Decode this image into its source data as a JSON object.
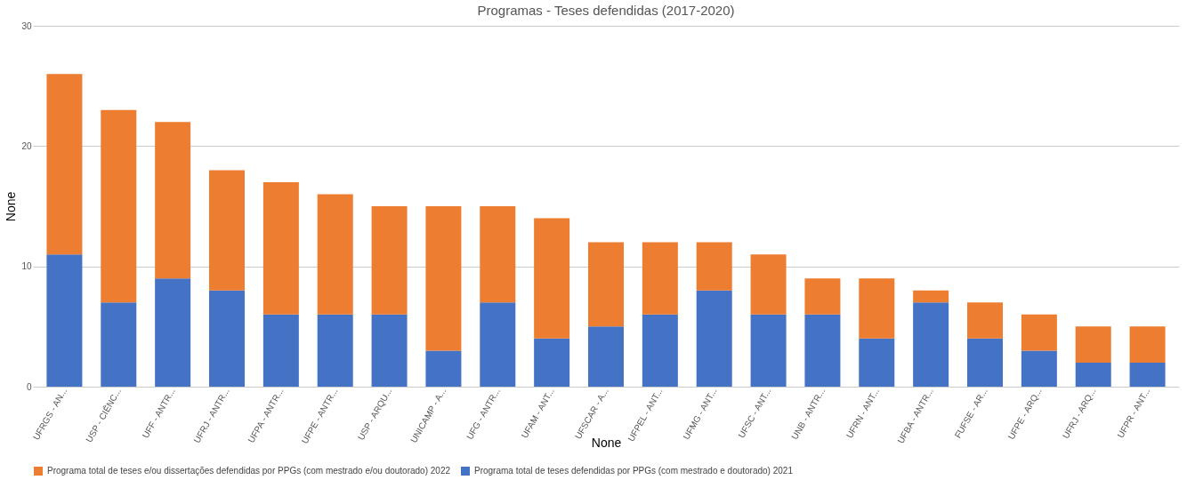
{
  "chart_data": {
    "type": "bar",
    "title": "Programas - Teses defendidas (2017-2020)",
    "xlabel": "None",
    "ylabel": "None",
    "categories": [
      "UFRGS - AN...",
      "USP - CIÊNC...",
      "UFF - ANTR...",
      "UFRJ - ANTR...",
      "UFPA - ANTR...",
      "UFPE - ANTR...",
      "USP - ARQU...",
      "UNICAMP - A...",
      "UFG - ANTR...",
      "UFAM - ANT...",
      "UFSCAR - A...",
      "UFPEL - ANT...",
      "UFMG - ANT...",
      "UFSC - ANT...",
      "UNB - ANTR...",
      "UFRN - ANT...",
      "UFBA - ANTR...",
      "FUFSE - AR...",
      "UFPE - ARQ...",
      "UFRJ - ARQ...",
      "UFPR - ANT..."
    ],
    "stacked": true,
    "series": [
      {
        "name": "Programa total de teses defendidas por PPGs (com mestrado e doutorado) 2021",
        "color": "#4472c4",
        "values": [
          11,
          7,
          9,
          8,
          6,
          6,
          6,
          3,
          7,
          4,
          5,
          6,
          8,
          6,
          6,
          4,
          7,
          4,
          3,
          2,
          2
        ]
      },
      {
        "name": "Programa total de teses e/ou dissertações defendidas por PPGs (com mestrado e/ou doutorado) 2022",
        "color": "#ed7d31",
        "values": [
          15,
          16,
          13,
          10,
          11,
          10,
          9,
          12,
          8,
          10,
          7,
          6,
          4,
          5,
          3,
          5,
          1,
          3,
          3,
          3,
          3
        ]
      }
    ],
    "ylim": [
      0,
      30
    ],
    "yticks": [
      0,
      10,
      20,
      30
    ],
    "grid": "y",
    "legend": "bottom left"
  }
}
